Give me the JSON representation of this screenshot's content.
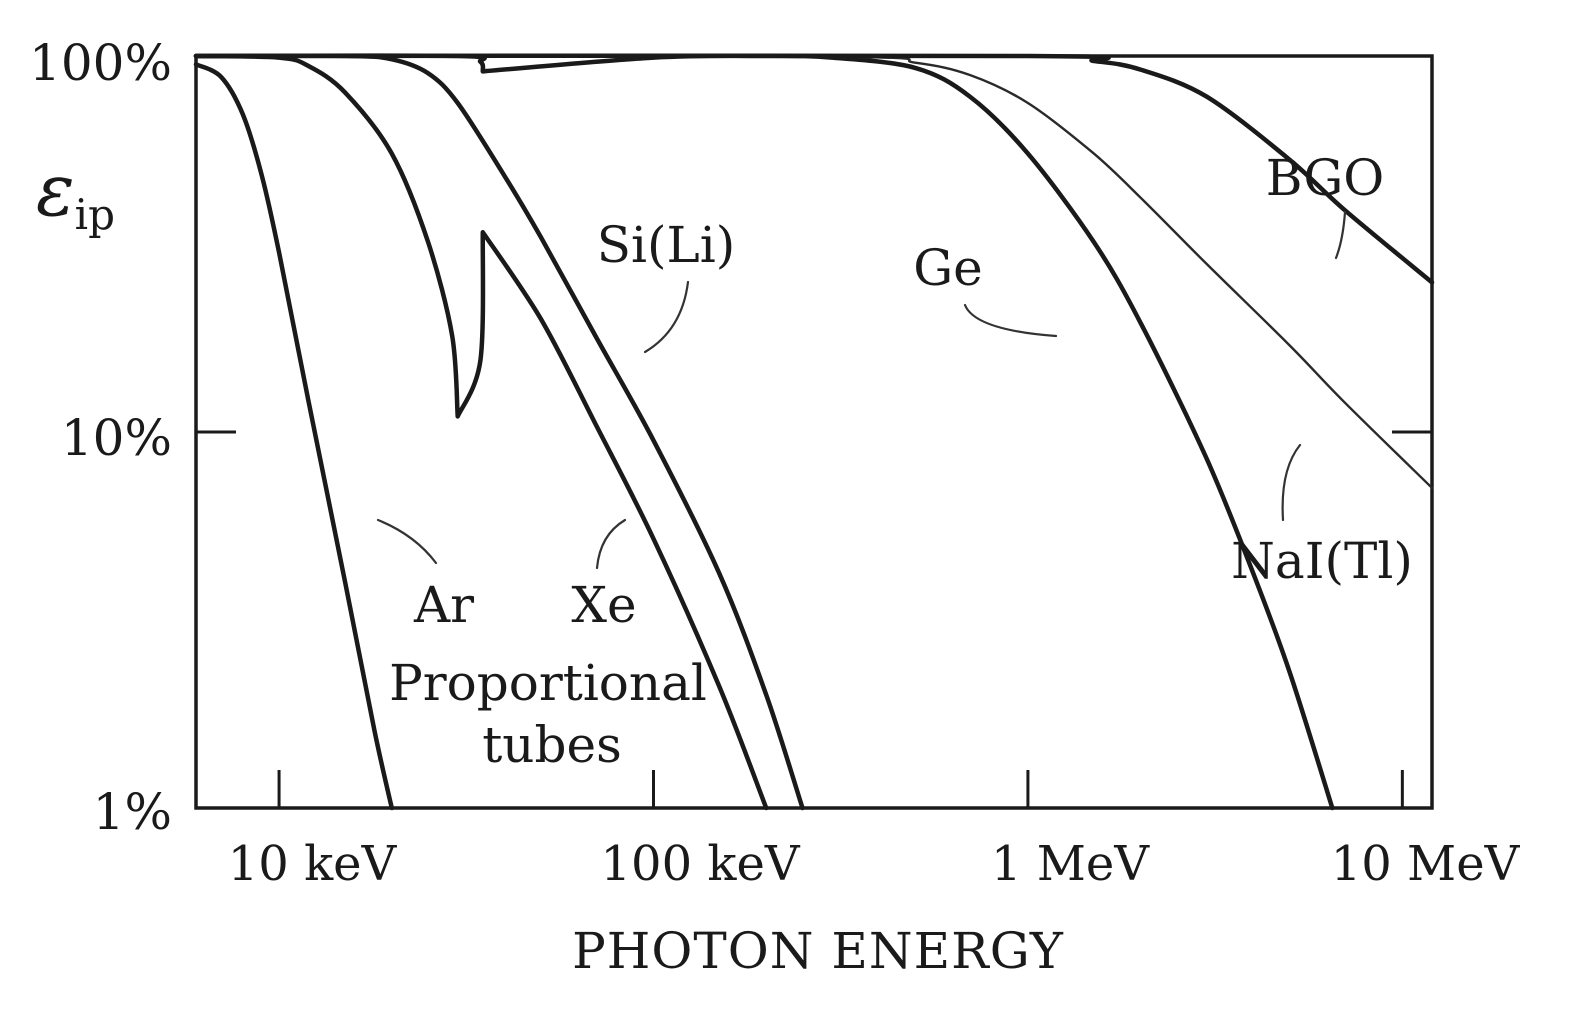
{
  "chart_data": {
    "type": "line",
    "x_scale": "log",
    "y_scale": "log",
    "xlabel": "PHOTON ENERGY",
    "ylabel": "ε",
    "ylabel_subscript": "ip",
    "xlim_keV": [
      6,
      12000
    ],
    "ylim_percent": [
      1,
      100
    ],
    "x_ticks": [
      {
        "value_keV": 10,
        "label": "10 keV"
      },
      {
        "value_keV": 100,
        "label": "100 keV"
      },
      {
        "value_keV": 1000,
        "label": "1 MeV"
      },
      {
        "value_keV": 10000,
        "label": "10 MeV"
      }
    ],
    "y_ticks": [
      {
        "value_percent": 100,
        "label": "100%"
      },
      {
        "value_percent": 10,
        "label": "10%"
      },
      {
        "value_percent": 1,
        "label": "1%"
      }
    ],
    "annotations": [
      "Proportional",
      "tubes"
    ],
    "series": [
      {
        "name": "Ar",
        "x_keV": [
          6,
          7,
          8,
          9,
          10,
          12,
          15,
          18,
          20
        ],
        "y_percent": [
          95,
          88,
          70,
          48,
          30,
          12,
          4,
          1.6,
          1
        ]
      },
      {
        "name": "Xe",
        "x_keV": [
          6,
          10,
          12,
          15,
          20,
          25,
          29,
          30,
          34.5,
          35,
          50,
          70,
          100,
          150,
          200
        ],
        "y_percent": [
          100,
          99,
          94,
          80,
          55,
          32,
          18,
          11,
          15.5,
          34,
          20,
          10.5,
          5.2,
          2.1,
          1
        ]
      },
      {
        "name": "Si(Li)",
        "x_keV": [
          6,
          15,
          20,
          25,
          30,
          40,
          50,
          70,
          100,
          150,
          200,
          250
        ],
        "y_percent": [
          100,
          100,
          98,
          90,
          75,
          48,
          33,
          18,
          9.5,
          4.2,
          2,
          1
        ]
      },
      {
        "name": "Ge",
        "x_keV": [
          6,
          30,
          34.5,
          35,
          100,
          200,
          300,
          500,
          700,
          1000,
          1500,
          2000,
          3000,
          4000,
          5000,
          6500
        ],
        "y_percent": [
          100,
          100,
          96.5,
          91,
          99,
          100,
          99,
          93,
          78,
          55,
          32,
          19.5,
          8.5,
          4.2,
          2.3,
          1
        ]
      },
      {
        "name": "NaI(Tl)",
        "x_keV": [
          6,
          300,
          500,
          700,
          1000,
          1500,
          2000,
          3000,
          5000,
          7000,
          12000
        ],
        "y_percent": [
          100,
          99.5,
          96,
          89,
          75,
          55,
          42,
          28,
          17,
          12,
          7.1
        ]
      },
      {
        "name": "BGO",
        "x_keV": [
          6,
          1000,
          1500,
          2000,
          3000,
          5000,
          7000,
          12000
        ],
        "y_percent": [
          100,
          100,
          97,
          92,
          78,
          53,
          39,
          25
        ]
      }
    ]
  }
}
